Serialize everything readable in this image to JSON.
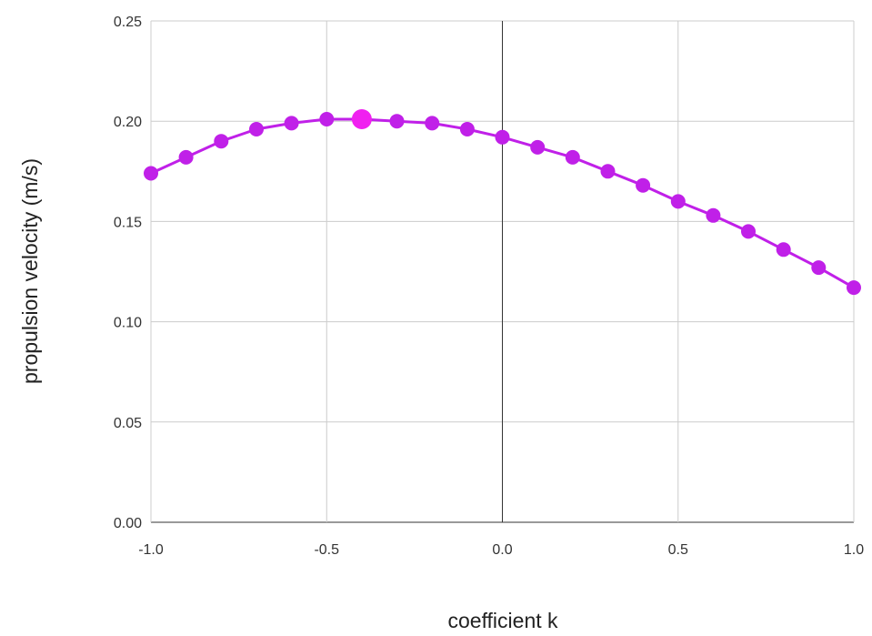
{
  "chart_data": {
    "type": "line",
    "title": "",
    "xlabel": "coefficient k",
    "ylabel": "propulsion velocity (m/s)",
    "xlim": [
      -1.0,
      1.0
    ],
    "ylim": [
      0.0,
      0.25
    ],
    "x_ticks": [
      "-1.0",
      "-0.5",
      "0.0",
      "0.5",
      "1.0"
    ],
    "y_ticks": [
      "0.00",
      "0.05",
      "0.10",
      "0.15",
      "0.20",
      "0.25"
    ],
    "grid": true,
    "legend": "none",
    "highlight_index": 6,
    "series": [
      {
        "color": "#c020e8",
        "highlight_color": "#f020f0",
        "x": [
          -1.0,
          -0.9,
          -0.8,
          -0.7,
          -0.6,
          -0.5,
          -0.4,
          -0.3,
          -0.2,
          -0.1,
          0.0,
          0.1,
          0.2,
          0.3,
          0.4,
          0.5,
          0.6,
          0.7,
          0.8,
          0.9,
          1.0
        ],
        "y": [
          0.174,
          0.182,
          0.19,
          0.196,
          0.199,
          0.201,
          0.201,
          0.2,
          0.199,
          0.196,
          0.192,
          0.187,
          0.182,
          0.175,
          0.168,
          0.16,
          0.153,
          0.145,
          0.136,
          0.127,
          0.117
        ]
      }
    ]
  }
}
